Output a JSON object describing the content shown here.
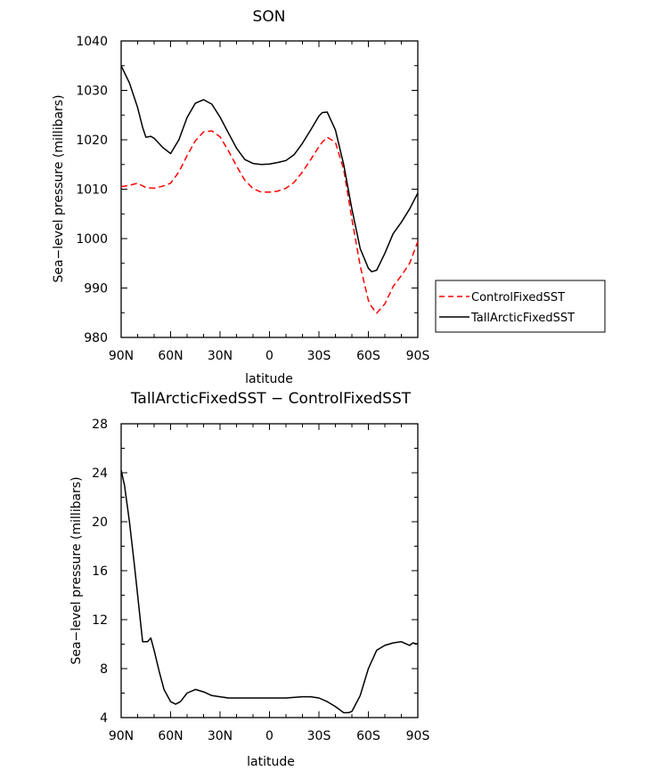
{
  "chart_data": [
    {
      "type": "line",
      "title": "SON",
      "xlabel": "latitude",
      "ylabel": "Sea−level pressure (millibars)",
      "xlim": [
        90,
        -90
      ],
      "ylim": [
        980,
        1040
      ],
      "x_ticks": [
        90,
        60,
        30,
        0,
        -30,
        -60,
        -90
      ],
      "x_tick_labels": [
        "90N",
        "60N",
        "30N",
        "0",
        "30S",
        "60S",
        "90S"
      ],
      "y_ticks": [
        980,
        990,
        1000,
        1010,
        1020,
        1030,
        1040
      ],
      "y_tick_labels": [
        "980",
        "990",
        "1000",
        "1010",
        "1020",
        "1030",
        "1040"
      ],
      "grid": false,
      "legend_position": "right",
      "series": [
        {
          "name": "ControlFixedSST",
          "color": "#ff0000",
          "dash": "dashed",
          "x": [
            90,
            85,
            80,
            75,
            70,
            65,
            60,
            55,
            50,
            45,
            40,
            35,
            30,
            25,
            20,
            15,
            10,
            5,
            0,
            -5,
            -10,
            -15,
            -20,
            -25,
            -30,
            -32,
            -35,
            -40,
            -45,
            -50,
            -55,
            -60,
            -62,
            -65,
            -70,
            -75,
            -80,
            -85,
            -90
          ],
          "values": [
            1010.5,
            1010.8,
            1011.2,
            1010.3,
            1010.2,
            1010.6,
            1011.2,
            1013.5,
            1016.8,
            1019.8,
            1021.6,
            1021.8,
            1020.6,
            1017.8,
            1014.7,
            1011.8,
            1010.1,
            1009.4,
            1009.4,
            1009.6,
            1010.2,
            1011.4,
            1013.5,
            1016.0,
            1018.6,
            1019.5,
            1020.5,
            1019.5,
            1014.0,
            1004.0,
            994.5,
            987.5,
            986.2,
            984.9,
            986.8,
            990.3,
            992.5,
            995.0,
            999.4
          ]
        },
        {
          "name": "TallArcticFixedSST",
          "color": "#000000",
          "dash": "solid",
          "x": [
            90,
            85,
            80,
            77,
            75,
            72,
            70,
            65,
            60,
            55,
            50,
            45,
            40,
            35,
            30,
            25,
            20,
            15,
            10,
            5,
            0,
            -5,
            -10,
            -15,
            -20,
            -25,
            -30,
            -32,
            -35,
            -40,
            -45,
            -50,
            -55,
            -60,
            -62,
            -65,
            -70,
            -75,
            -80,
            -85,
            -90
          ],
          "values": [
            1035,
            1031.5,
            1026.5,
            1022.5,
            1020.5,
            1020.7,
            1020.3,
            1018.5,
            1017.2,
            1020.0,
            1024.5,
            1027.4,
            1028.1,
            1027.2,
            1024.6,
            1021.4,
            1018.3,
            1016.0,
            1015.2,
            1015.0,
            1015.1,
            1015.4,
            1015.8,
            1017.0,
            1019.3,
            1022.0,
            1024.8,
            1025.5,
            1025.6,
            1022.0,
            1015.0,
            1006.0,
            998.0,
            994.0,
            993.3,
            993.6,
            997.0,
            1001.0,
            1003.3,
            1006.0,
            1009.2
          ]
        }
      ]
    },
    {
      "type": "line",
      "title": "TallArcticFixedSST − ControlFixedSST",
      "xlabel": "latitude",
      "ylabel": "Sea−level pressure (millibars)",
      "xlim": [
        90,
        -90
      ],
      "ylim": [
        4,
        28
      ],
      "x_ticks": [
        90,
        60,
        30,
        0,
        -30,
        -60,
        -90
      ],
      "x_tick_labels": [
        "90N",
        "60N",
        "30N",
        "0",
        "30S",
        "60S",
        "90S"
      ],
      "y_ticks": [
        4,
        8,
        12,
        16,
        20,
        24,
        28
      ],
      "y_tick_labels": [
        "4",
        "8",
        "12",
        "16",
        "20",
        "24",
        "28"
      ],
      "grid": false,
      "series": [
        {
          "color": "#000000",
          "dash": "solid",
          "x": [
            90,
            88,
            85,
            82,
            80,
            77,
            74,
            72,
            70,
            67,
            64,
            60,
            57,
            54,
            50,
            45,
            40,
            35,
            30,
            25,
            20,
            10,
            0,
            -10,
            -20,
            -25,
            -30,
            -35,
            -40,
            -43,
            -45,
            -48,
            -50,
            -55,
            -60,
            -65,
            -70,
            -75,
            -80,
            -85,
            -87,
            -90
          ],
          "values": [
            24.2,
            23.0,
            20.0,
            16.5,
            14.0,
            10.2,
            10.2,
            10.5,
            9.5,
            7.8,
            6.3,
            5.3,
            5.1,
            5.3,
            6.0,
            6.3,
            6.1,
            5.8,
            5.7,
            5.6,
            5.6,
            5.6,
            5.6,
            5.6,
            5.7,
            5.7,
            5.6,
            5.3,
            4.9,
            4.6,
            4.4,
            4.4,
            4.5,
            5.8,
            8.0,
            9.5,
            9.9,
            10.1,
            10.2,
            9.9,
            10.1,
            10.0
          ]
        }
      ]
    }
  ]
}
